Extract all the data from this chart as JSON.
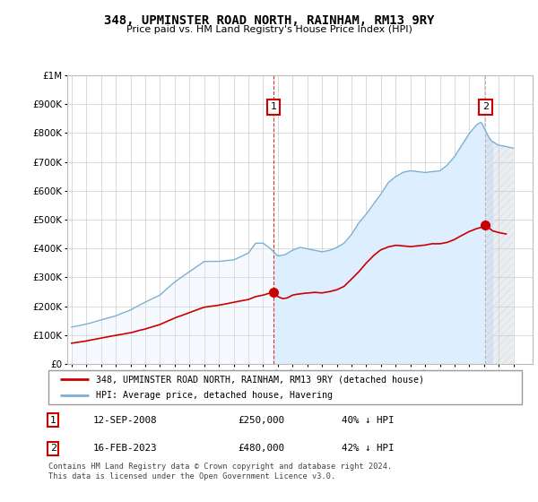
{
  "title": "348, UPMINSTER ROAD NORTH, RAINHAM, RM13 9RY",
  "subtitle": "Price paid vs. HM Land Registry's House Price Index (HPI)",
  "legend_line1": "348, UPMINSTER ROAD NORTH, RAINHAM, RM13 9RY (detached house)",
  "legend_line2": "HPI: Average price, detached house, Havering",
  "annotation1_label": "1",
  "annotation1_date": "12-SEP-2008",
  "annotation1_price": "£250,000",
  "annotation1_hpi": "40% ↓ HPI",
  "annotation2_label": "2",
  "annotation2_date": "16-FEB-2023",
  "annotation2_price": "£480,000",
  "annotation2_hpi": "42% ↓ HPI",
  "footer": "Contains HM Land Registry data © Crown copyright and database right 2024.\nThis data is licensed under the Open Government Licence v3.0.",
  "price_paid_color": "#cc0000",
  "hpi_color": "#7ab0d4",
  "hpi_fill_color": "#ddeeff",
  "annotation_box_color": "#cc0000",
  "background_color": "#ffffff",
  "ylim": [
    0,
    1000000
  ],
  "yticks": [
    0,
    100000,
    200000,
    300000,
    400000,
    500000,
    600000,
    700000,
    800000,
    900000,
    1000000
  ],
  "grid_color": "#cccccc",
  "vline1_color": "#cc0000",
  "vline2_color": "#cc9999",
  "vline_style": "--",
  "sale1_x": 2008.7,
  "sale1_y": 250000,
  "sale2_x": 2023.1,
  "sale2_y": 480000,
  "xlim_left": 1994.7,
  "xlim_right": 2026.3
}
